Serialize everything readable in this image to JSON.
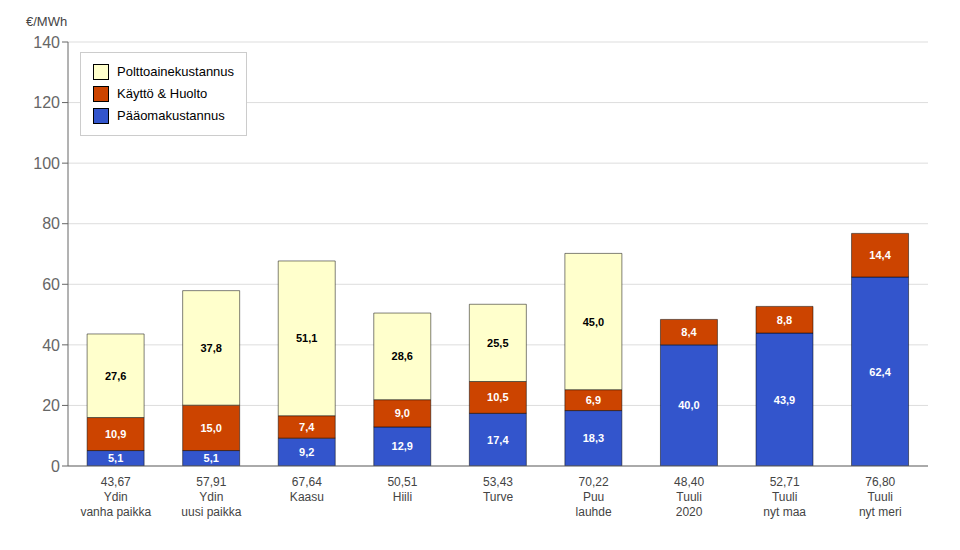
{
  "chart_data": {
    "type": "bar",
    "stacked": true,
    "data_labels": true,
    "grid": true,
    "legend": "upper left",
    "ylabel": "€/MWh",
    "categories": [
      [
        "43,67",
        "Ydin",
        "vanha paikka"
      ],
      [
        "57,91",
        "Ydin",
        "uusi paikka"
      ],
      [
        "67,64",
        "Kaasu"
      ],
      [
        "50,51",
        "Hiili"
      ],
      [
        "53,43",
        "Turve"
      ],
      [
        "70,22",
        "Puu",
        "lauhde"
      ],
      [
        "48,40",
        "Tuuli",
        "2020"
      ],
      [
        "52,71",
        "Tuuli",
        "nyt maa"
      ],
      [
        "76,80",
        "Tuuli",
        "nyt meri"
      ]
    ],
    "series": [
      {
        "name": "Polttoainekustannus",
        "color": "#FFFFCC",
        "values": [
          27.6,
          37.8,
          51.1,
          28.6,
          25.5,
          45.0,
          0.0,
          0.0,
          0.0
        ],
        "value_labels": [
          "27,6",
          "37,8",
          "51,1",
          "28,6",
          "25,5",
          "45,0",
          null,
          null,
          null
        ]
      },
      {
        "name": "Käyttö & Huolto",
        "color": "#CC4400",
        "values": [
          10.9,
          15.0,
          7.4,
          9.0,
          10.5,
          6.9,
          8.4,
          8.8,
          14.4
        ],
        "value_labels": [
          "10,9",
          "15,0",
          "7,4",
          "9,0",
          "10,5",
          "6,9",
          "8,4",
          "8,8",
          "14,4"
        ]
      },
      {
        "name": "Pääomakustannus",
        "color": "#3355CC",
        "values": [
          5.1,
          5.1,
          9.2,
          12.9,
          17.4,
          18.3,
          40.0,
          43.9,
          62.4
        ],
        "value_labels": [
          "5,1",
          "5,1",
          "9,2",
          "12,9",
          "17,4",
          "18,3",
          "40,0",
          "43,9",
          "62,4"
        ]
      }
    ],
    "ylim": [
      0,
      140
    ],
    "yticks": [
      0,
      20,
      40,
      60,
      80,
      100,
      120,
      140
    ]
  }
}
